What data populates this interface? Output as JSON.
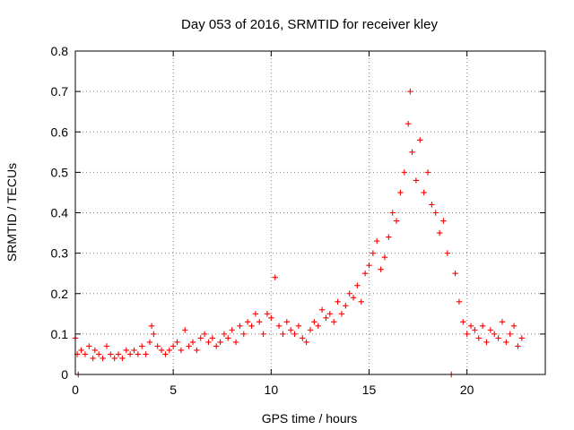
{
  "chart_data": {
    "type": "scatter",
    "title": "Day 053 of 2016, SRMTID for receiver kley",
    "xlabel": "GPS time / hours",
    "ylabel": "SRMTID / TECUs",
    "xlim": [
      0,
      24
    ],
    "ylim": [
      0,
      0.8
    ],
    "xticks": [
      "0",
      "5",
      "10",
      "15",
      "20"
    ],
    "yticks": [
      "0",
      "0.1",
      "0.2",
      "0.3",
      "0.4",
      "0.5",
      "0.6",
      "0.7",
      "0.8"
    ],
    "grid": true,
    "marker": "+",
    "color": "#ff0000",
    "series": [
      {
        "name": "SRMTID",
        "x": [
          0.0,
          0.1,
          0.15,
          0.3,
          0.5,
          0.7,
          0.9,
          1.0,
          1.2,
          1.4,
          1.6,
          1.8,
          2.0,
          2.2,
          2.4,
          2.6,
          2.8,
          3.0,
          3.2,
          3.4,
          3.6,
          3.8,
          3.9,
          4.0,
          4.2,
          4.4,
          4.6,
          4.8,
          5.0,
          5.2,
          5.4,
          5.6,
          5.8,
          6.0,
          6.2,
          6.4,
          6.6,
          6.8,
          7.0,
          7.2,
          7.4,
          7.6,
          7.8,
          8.0,
          8.2,
          8.4,
          8.6,
          8.8,
          9.0,
          9.2,
          9.4,
          9.6,
          9.8,
          10.0,
          10.2,
          10.4,
          10.6,
          10.8,
          11.0,
          11.2,
          11.4,
          11.6,
          11.8,
          12.0,
          12.2,
          12.4,
          12.6,
          12.8,
          13.0,
          13.2,
          13.4,
          13.6,
          13.8,
          14.0,
          14.2,
          14.4,
          14.6,
          14.8,
          15.0,
          15.2,
          15.4,
          15.6,
          15.8,
          16.0,
          16.2,
          16.4,
          16.6,
          16.8,
          17.0,
          17.1,
          17.2,
          17.4,
          17.6,
          17.8,
          18.0,
          18.2,
          18.4,
          18.6,
          18.8,
          19.0,
          19.2,
          19.4,
          19.6,
          19.8,
          20.0,
          20.2,
          20.4,
          20.6,
          20.8,
          21.0,
          21.2,
          21.4,
          21.6,
          21.8,
          22.0,
          22.2,
          22.4,
          22.6,
          22.8
        ],
        "y": [
          0.09,
          0.05,
          0.0,
          0.06,
          0.05,
          0.07,
          0.04,
          0.06,
          0.05,
          0.04,
          0.07,
          0.05,
          0.04,
          0.05,
          0.04,
          0.06,
          0.05,
          0.06,
          0.05,
          0.07,
          0.05,
          0.08,
          0.12,
          0.1,
          0.07,
          0.06,
          0.05,
          0.06,
          0.07,
          0.08,
          0.06,
          0.11,
          0.07,
          0.08,
          0.06,
          0.09,
          0.1,
          0.08,
          0.09,
          0.07,
          0.08,
          0.1,
          0.09,
          0.11,
          0.08,
          0.12,
          0.1,
          0.13,
          0.12,
          0.15,
          0.13,
          0.1,
          0.15,
          0.14,
          0.24,
          0.12,
          0.1,
          0.13,
          0.11,
          0.1,
          0.12,
          0.09,
          0.08,
          0.11,
          0.13,
          0.12,
          0.16,
          0.14,
          0.15,
          0.13,
          0.18,
          0.15,
          0.17,
          0.2,
          0.19,
          0.22,
          0.18,
          0.25,
          0.27,
          0.3,
          0.33,
          0.26,
          0.29,
          0.34,
          0.4,
          0.38,
          0.45,
          0.5,
          0.62,
          0.7,
          0.55,
          0.48,
          0.58,
          0.45,
          0.5,
          0.42,
          0.4,
          0.35,
          0.38,
          0.3,
          0.0,
          0.25,
          0.18,
          0.13,
          0.1,
          0.12,
          0.11,
          0.09,
          0.12,
          0.08,
          0.11,
          0.1,
          0.09,
          0.13,
          0.08,
          0.1,
          0.12,
          0.07,
          0.09
        ]
      }
    ]
  }
}
